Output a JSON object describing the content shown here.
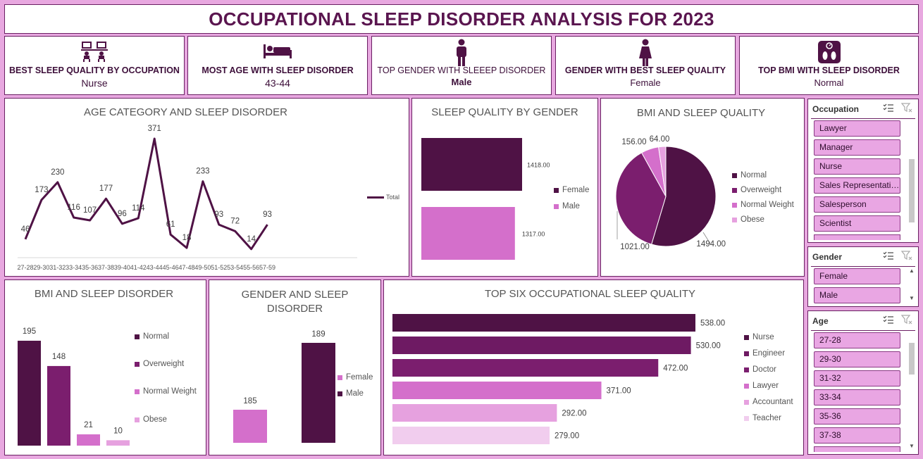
{
  "title": "OCCUPATIONAL SLEEP DISORDER ANALYSIS FOR 2023",
  "kpis": [
    {
      "label": "BEST SLEEP QUALITY BY OCCUPATION",
      "value": "Nurse",
      "icon": "desk-workers-icon"
    },
    {
      "label": "MOST AGE  WITH SLEEP DISORDER",
      "value": "43-44",
      "icon": "bed-icon"
    },
    {
      "label": "TOP GENDER WITH  SLEEEP DISORDER",
      "value": "Male",
      "icon": "male-person-icon"
    },
    {
      "label": "GENDER WITH BEST SLEEP QUALITY",
      "value": "Female",
      "icon": "female-person-icon"
    },
    {
      "label": "TOP BMI WITH SLEEP DISORDER",
      "value": "Normal",
      "icon": "weighing-scale-icon"
    }
  ],
  "colors": {
    "dark": "#4f1245",
    "mid": "#7b1e6e",
    "pink": "#d46fcb",
    "light_pink": "#e6a1df",
    "pale_pink": "#f1cdee",
    "background": "#e8a8e0"
  },
  "chart_data": [
    {
      "id": "age_line",
      "type": "line",
      "title": "AGE CATEGORY AND SLEEP DISORDER",
      "categories": [
        "27-28",
        "29-30",
        "31-32",
        "33-34",
        "35-36",
        "37-38",
        "39-40",
        "41-42",
        "43-44",
        "45-46",
        "47-48",
        "49-50",
        "51-52",
        "53-54",
        "55-56",
        "57-59"
      ],
      "series": [
        {
          "name": "Total",
          "values": [
            46,
            173,
            230,
            116,
            107,
            177,
            96,
            114,
            371,
            61,
            18,
            233,
            93,
            72,
            14,
            93
          ]
        }
      ]
    },
    {
      "id": "gender_quality",
      "type": "bar",
      "title": "SLEEP QUALITY BY GENDER",
      "categories": [
        "Female",
        "Male"
      ],
      "values": [
        1418.0,
        1317.0
      ],
      "value_labels": [
        "1418.00",
        "1317.00"
      ],
      "legend": [
        "Female",
        "Male"
      ]
    },
    {
      "id": "bmi_quality_pie",
      "type": "pie",
      "title": "BMI AND SLEEP QUALITY",
      "categories": [
        "Normal",
        "Overweight",
        "Normal Weight",
        "Obese"
      ],
      "values": [
        1494.0,
        1021.0,
        156.0,
        64.0
      ],
      "value_labels": [
        "1494.00",
        "1021.00",
        "156.00",
        "64.00"
      ]
    },
    {
      "id": "bmi_disorder",
      "type": "bar",
      "title": "BMI AND SLEEP DISORDER",
      "categories": [
        "Normal",
        "Overweight",
        "Normal Weight",
        "Obese"
      ],
      "values": [
        195,
        148,
        21,
        10
      ]
    },
    {
      "id": "gender_disorder",
      "type": "bar",
      "title": "GENDER AND SLEEP DISORDER",
      "categories": [
        "Female",
        "Male"
      ],
      "values": [
        185,
        189
      ],
      "legend": [
        "Female",
        "Male"
      ]
    },
    {
      "id": "occupation_quality",
      "type": "bar",
      "title": "TOP SIX OCCUPATIONAL SLEEP QUALITY",
      "categories": [
        "Nurse",
        "Engineer",
        "Doctor",
        "Lawyer",
        "Accountant",
        "Teacher"
      ],
      "values": [
        538.0,
        530.0,
        472.0,
        371.0,
        292.0,
        279.0
      ],
      "value_labels": [
        "538.00",
        "530.00",
        "472.00",
        "371.00",
        "292.00",
        "279.00"
      ]
    }
  ],
  "slicers": {
    "occupation": {
      "header": "Occupation",
      "items": [
        "Lawyer",
        "Manager",
        "Nurse",
        "Sales Representative",
        "Salesperson",
        "Scientist"
      ]
    },
    "gender": {
      "header": "Gender",
      "items": [
        "Female",
        "Male"
      ]
    },
    "age": {
      "header": "Age",
      "items": [
        "27-28",
        "29-30",
        "31-32",
        "33-34",
        "35-36",
        "37-38"
      ]
    }
  }
}
